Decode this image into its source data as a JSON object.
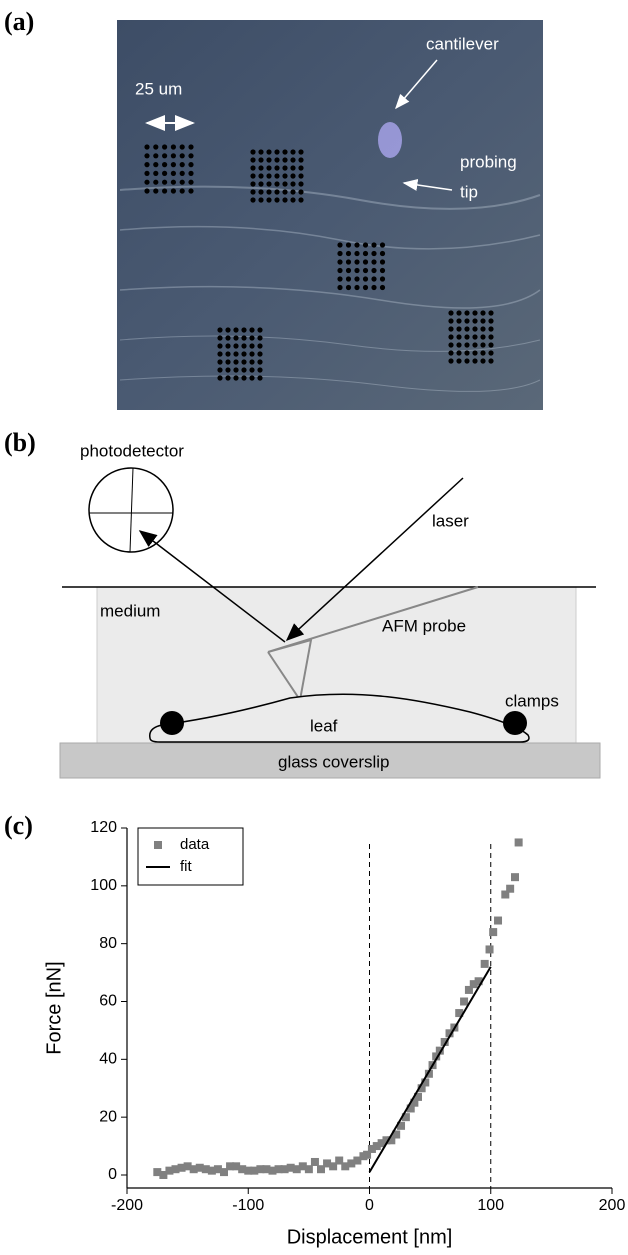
{
  "panel_a": {
    "label": "(a)",
    "scale_bar": "25 um",
    "annotations": [
      "cantilever",
      "probing",
      "tip"
    ]
  },
  "panel_b": {
    "label": "(b)",
    "labels": {
      "photodetector": "photodetector",
      "laser": "laser",
      "medium": "medium",
      "probe": "AFM probe",
      "leaf": "leaf",
      "clamps": "clamps",
      "coverslip": "glass coverslip"
    }
  },
  "chart_data": {
    "type": "scatter",
    "label": "(c)",
    "x_label": "Displacement [nm]",
    "y_label": "Force [nN]",
    "xlim": [
      -200,
      200
    ],
    "ylim": [
      -4.5,
      120
    ],
    "xticks": [
      -200,
      -100,
      0,
      100,
      200
    ],
    "yticks": [
      0,
      20,
      40,
      60,
      80,
      100,
      120
    ],
    "vlines": [
      0,
      100
    ],
    "legend": "upper-left",
    "series": [
      {
        "name": "data",
        "color": "#808080",
        "marker": "square",
        "x": [
          -175,
          -170,
          -165,
          -160,
          -155,
          -150,
          -145,
          -140,
          -135,
          -130,
          -125,
          -120,
          -115,
          -110,
          -105,
          -100,
          -95,
          -90,
          -85,
          -80,
          -75,
          -70,
          -65,
          -60,
          -55,
          -50,
          -45,
          -40,
          -35,
          -30,
          -25,
          -20,
          -15,
          -10,
          -5,
          -2,
          2,
          6,
          10,
          14,
          18,
          22,
          26,
          30,
          34,
          37,
          40,
          43,
          46,
          49,
          52,
          55,
          58,
          62,
          66,
          70,
          74,
          78,
          82,
          86,
          90,
          95,
          99,
          102,
          106,
          112,
          116,
          120,
          123
        ],
        "values": [
          1,
          0,
          1.5,
          2,
          2.5,
          3,
          2,
          2.5,
          2,
          1.5,
          2,
          1,
          3,
          3,
          2,
          1.5,
          1.5,
          2,
          2,
          1.5,
          2,
          2,
          2.5,
          2,
          3,
          2,
          4.5,
          2,
          4,
          3,
          5,
          3,
          4,
          5,
          6.5,
          7,
          9,
          10,
          11,
          12,
          12,
          14,
          17,
          20,
          23,
          25,
          27,
          30,
          32,
          35,
          38,
          41,
          43,
          46,
          49,
          51,
          56,
          60,
          64,
          66,
          67,
          73,
          78,
          84,
          88,
          97,
          99,
          103,
          115
        ]
      },
      {
        "name": "fit",
        "color": "#000000",
        "marker": "line",
        "x": [
          0,
          100
        ],
        "values": [
          1,
          72
        ]
      }
    ]
  }
}
